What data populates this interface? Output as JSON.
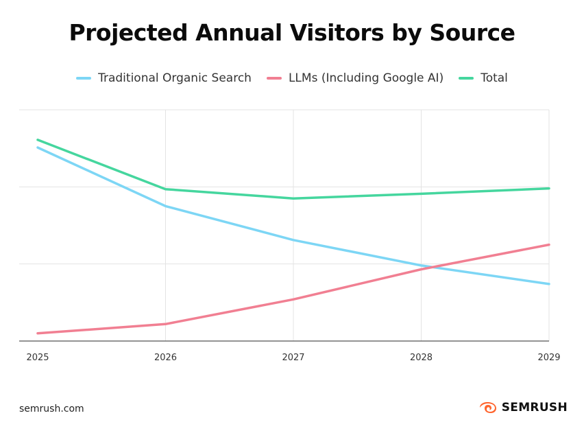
{
  "title": "Projected Annual Visitors by Source",
  "footer": {
    "source": "semrush.com",
    "brand": "SEMRUSH",
    "brand_icon": "semrush-flame-icon"
  },
  "colors": {
    "organic": "#7dd6f5",
    "llm": "#f17f92",
    "total": "#45d69e",
    "grid": "#e3e3e3",
    "axis": "#555555",
    "brand": "#ff642d"
  },
  "chart_data": {
    "type": "line",
    "title": "Projected Annual Visitors by Source",
    "xlabel": "",
    "ylabel": "",
    "x": [
      "2025",
      "2026",
      "2027",
      "2028",
      "2029"
    ],
    "ylim": [
      0,
      3
    ],
    "y_ticks_visible": false,
    "grid": true,
    "legend_position": "top-center",
    "series": [
      {
        "name": "Traditional Organic Search",
        "color": "#7dd6f5",
        "values": [
          2.51,
          1.75,
          1.31,
          0.98,
          0.74
        ]
      },
      {
        "name": "LLMs (Including Google AI)",
        "color": "#f17f92",
        "values": [
          0.1,
          0.22,
          0.54,
          0.93,
          1.25
        ]
      },
      {
        "name": "Total",
        "color": "#45d69e",
        "values": [
          2.61,
          1.97,
          1.85,
          1.91,
          1.98
        ]
      }
    ]
  }
}
